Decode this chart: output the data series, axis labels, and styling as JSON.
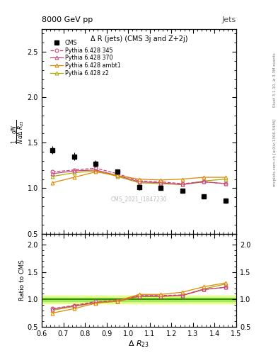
{
  "title": "Δ R (jets) (CMS 3j and Z+2j)",
  "xlabel": "Δ R_{23}",
  "ylabel_main": "$\\frac{1}{N}\\frac{dN}{d\\Delta\\ R_{23}}$",
  "ylabel_ratio": "Ratio to CMS",
  "header_left": "8000 GeV pp",
  "header_right": "Jets",
  "watermark": "CMS_2021_I1847230",
  "rivet_label": "Rivet 3.1.10, ≥ 3.3M events",
  "arxiv_label": "[arXiv:1306.3436]",
  "mcplots_label": "mcplots.cern.ch",
  "cms_x": [
    0.65,
    0.75,
    0.85,
    0.95,
    1.05,
    1.15,
    1.25,
    1.35,
    1.45
  ],
  "cms_y": [
    1.42,
    1.35,
    1.27,
    1.18,
    1.01,
    1.0,
    0.97,
    0.91,
    0.86
  ],
  "cms_yerr": [
    0.04,
    0.04,
    0.04,
    0.03,
    0.03,
    0.02,
    0.02,
    0.02,
    0.03
  ],
  "py345_x": [
    0.65,
    0.75,
    0.85,
    0.95,
    1.05,
    1.15,
    1.25,
    1.35,
    1.45
  ],
  "py345_y": [
    1.18,
    1.2,
    1.22,
    1.16,
    1.08,
    1.07,
    1.05,
    1.07,
    1.05
  ],
  "py345_yerr": [
    0.01,
    0.01,
    0.01,
    0.01,
    0.01,
    0.01,
    0.01,
    0.01,
    0.01
  ],
  "py345_color": "#cc4477",
  "py370_x": [
    0.65,
    0.75,
    0.85,
    0.95,
    1.05,
    1.15,
    1.25,
    1.35,
    1.45
  ],
  "py370_y": [
    1.16,
    1.19,
    1.2,
    1.14,
    1.07,
    1.06,
    1.04,
    1.07,
    1.05
  ],
  "py370_yerr": [
    0.01,
    0.01,
    0.01,
    0.01,
    0.01,
    0.01,
    0.01,
    0.01,
    0.01
  ],
  "py370_color": "#cc4477",
  "pyambt1_x": [
    0.65,
    0.75,
    0.85,
    0.95,
    1.05,
    1.15,
    1.25,
    1.35,
    1.45
  ],
  "pyambt1_y": [
    1.06,
    1.12,
    1.18,
    1.14,
    1.1,
    1.09,
    1.1,
    1.12,
    1.12
  ],
  "pyambt1_yerr": [
    0.01,
    0.01,
    0.01,
    0.01,
    0.01,
    0.01,
    0.01,
    0.01,
    0.01
  ],
  "pyambt1_color": "#dd8800",
  "pyz2_x": [
    0.65,
    0.75,
    0.85,
    0.95,
    1.05,
    1.15,
    1.25,
    1.35,
    1.45
  ],
  "pyz2_y": [
    1.13,
    1.17,
    1.19,
    1.13,
    1.06,
    1.05,
    1.04,
    1.08,
    1.1
  ],
  "pyz2_yerr": [
    0.01,
    0.01,
    0.01,
    0.01,
    0.01,
    0.01,
    0.01,
    0.01,
    0.01
  ],
  "pyz2_color": "#aaaa00",
  "ratio345_y": [
    0.83,
    0.89,
    0.96,
    0.98,
    1.07,
    1.07,
    1.08,
    1.18,
    1.22
  ],
  "ratio370_y": [
    0.82,
    0.88,
    0.94,
    0.97,
    1.06,
    1.06,
    1.07,
    1.18,
    1.22
  ],
  "ratioambt1_y": [
    0.75,
    0.83,
    0.93,
    0.97,
    1.09,
    1.09,
    1.13,
    1.23,
    1.3
  ],
  "ratioz2_y": [
    0.8,
    0.87,
    0.94,
    0.96,
    1.05,
    1.05,
    1.07,
    1.19,
    1.28
  ],
  "xlim": [
    0.6,
    1.5
  ],
  "ylim_main": [
    0.5,
    2.75
  ],
  "ylim_ratio": [
    0.5,
    2.2
  ],
  "yticks_main": [
    0.5,
    1.0,
    1.5,
    2.0,
    2.5
  ],
  "yticks_ratio": [
    0.5,
    1.0,
    1.5,
    2.0
  ]
}
